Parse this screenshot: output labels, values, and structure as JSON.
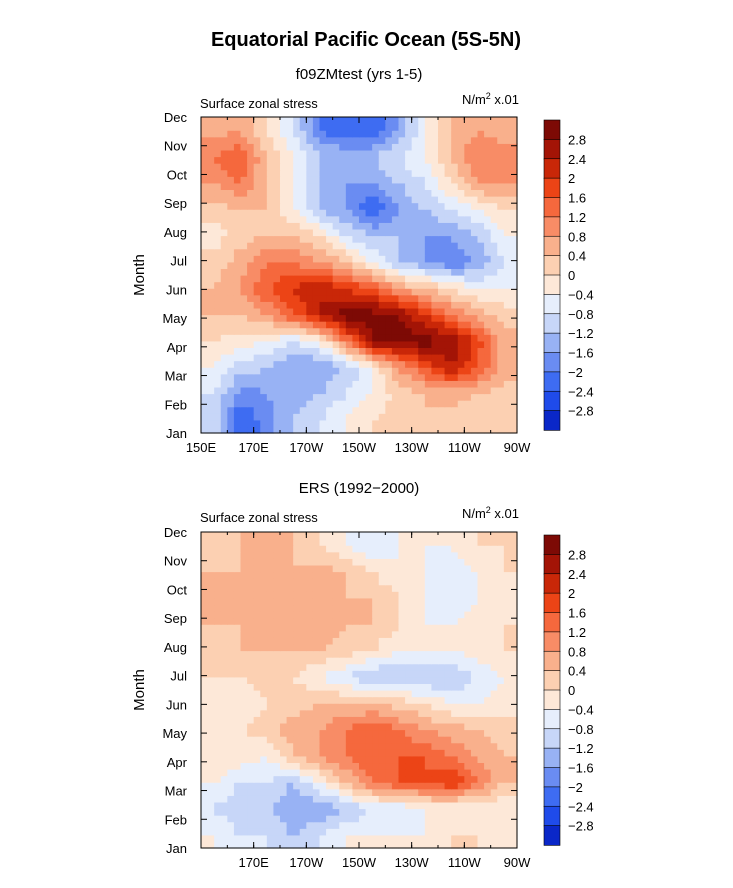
{
  "main_title": "Equatorial Pacific Ocean (5S-5N)",
  "colors": {
    "levels": [
      "#08088c",
      "#0a27c8",
      "#1f4bea",
      "#3e6cf2",
      "#6a8cf2",
      "#98b2f4",
      "#c7d6f8",
      "#e6eefc",
      "#fde8d8",
      "#fcd0b2",
      "#f9b08c",
      "#f88c66",
      "#f5683d",
      "#ec4416",
      "#c92708",
      "#a31406",
      "#7d0a05"
    ]
  },
  "chart_data": [
    {
      "type": "heatmap",
      "title": "f09ZMtest (yrs 1-5)",
      "left_label": "Surface zonal stress",
      "right_label_base": "N/m",
      "right_label_sup": "2",
      "right_label_tail": " x.01",
      "ylabel": "Month",
      "yticklabels": [
        "Jan",
        "Feb",
        "Mar",
        "Apr",
        "May",
        "Jun",
        "Jul",
        "Aug",
        "Sep",
        "Oct",
        "Nov",
        "Dec"
      ],
      "xticklabels": [
        "150E",
        "170E",
        "170W",
        "150W",
        "130W",
        "110W",
        "90W"
      ],
      "x_degE": [
        150,
        170,
        190,
        210,
        230,
        250,
        270
      ],
      "colorbar_labels": [
        "2.8",
        "2.4",
        "2",
        "1.6",
        "1.2",
        "0.8",
        "0.4",
        "0",
        "−0.4",
        "−0.8",
        "−1.2",
        "−1.6",
        "−2",
        "−2.4",
        "−2.8"
      ],
      "levels": [
        -2.8,
        -2.4,
        -2,
        -1.6,
        -1.2,
        -0.8,
        -0.4,
        0,
        0.4,
        0.8,
        1.2,
        1.6,
        2,
        2.4,
        2.8
      ],
      "values": [
        [
          -1.0,
          -2.4,
          -1.8,
          -1.2,
          -0.8,
          -0.4,
          0.0,
          0.2,
          0.4,
          0.3,
          0.2,
          0.0
        ],
        [
          -0.8,
          -1.8,
          -1.6,
          -1.4,
          -1.2,
          -0.8,
          -0.4,
          0.2,
          0.4,
          0.5,
          0.4,
          0.2
        ],
        [
          -0.4,
          -1.0,
          -1.2,
          -1.6,
          -1.6,
          -1.2,
          -0.4,
          0.8,
          1.6,
          2.4,
          1.6,
          0.6
        ],
        [
          0.0,
          -0.2,
          -0.4,
          -0.8,
          -0.4,
          1.2,
          2.8,
          3.0,
          3.0,
          2.8,
          1.8,
          0.6
        ],
        [
          0.4,
          0.4,
          0.8,
          1.6,
          2.4,
          3.0,
          3.0,
          2.8,
          2.0,
          1.2,
          0.6,
          0.2
        ],
        [
          0.4,
          0.8,
          1.6,
          2.0,
          2.4,
          2.0,
          1.6,
          0.8,
          0.4,
          0.0,
          -0.4,
          -0.4
        ],
        [
          0.2,
          0.6,
          1.2,
          1.2,
          0.8,
          0.4,
          -0.4,
          -1.2,
          -1.6,
          -2.0,
          -1.6,
          -0.8
        ],
        [
          -0.2,
          0.2,
          0.4,
          0.4,
          0.0,
          -0.8,
          -1.2,
          -1.2,
          -1.6,
          -1.6,
          -1.2,
          -0.4
        ],
        [
          0.2,
          0.4,
          0.4,
          -0.4,
          -1.2,
          -1.6,
          -2.4,
          -1.6,
          -1.2,
          -0.8,
          -0.4,
          0.0
        ],
        [
          0.8,
          1.2,
          0.4,
          -0.4,
          -1.2,
          -1.6,
          -1.6,
          -1.2,
          -0.8,
          0.0,
          0.8,
          0.8
        ],
        [
          1.2,
          1.6,
          0.4,
          -0.4,
          -1.2,
          -1.2,
          -1.2,
          -0.8,
          -0.4,
          0.4,
          1.2,
          1.0
        ],
        [
          0.6,
          0.8,
          0.0,
          -0.8,
          -2.0,
          -2.4,
          -2.4,
          -1.6,
          -0.4,
          0.4,
          0.8,
          0.6
        ]
      ]
    },
    {
      "type": "heatmap",
      "title": "ERS (1992−2000)",
      "left_label": "Surface zonal stress",
      "right_label_base": "N/m",
      "right_label_sup": "2",
      "right_label_tail": " x.01",
      "ylabel": "Month",
      "yticklabels": [
        "Jan",
        "Feb",
        "Mar",
        "Apr",
        "May",
        "Jun",
        "Jul",
        "Aug",
        "Sep",
        "Oct",
        "Nov",
        "Dec"
      ],
      "xticklabels": [
        "170E",
        "170W",
        "150W",
        "130W",
        "110W",
        "90W"
      ],
      "x_degE": [
        170,
        190,
        210,
        230,
        250,
        270
      ],
      "colorbar_labels": [
        "2.8",
        "2.4",
        "2",
        "1.6",
        "1.2",
        "0.8",
        "0.4",
        "0",
        "−0.4",
        "−0.8",
        "−1.2",
        "−1.6",
        "−2",
        "−2.4",
        "−2.8"
      ],
      "levels": [
        -2.8,
        -2.4,
        -2,
        -1.6,
        -1.2,
        -0.8,
        -0.4,
        0,
        0.4,
        0.8,
        1.2,
        1.6,
        2,
        2.4,
        2.8
      ],
      "values": [
        [
          -0.4,
          -0.8,
          -0.8,
          -1.2,
          -0.8,
          -0.4,
          -0.4,
          -0.4,
          -0.4,
          0.0,
          0.0,
          -0.4
        ],
        [
          -0.8,
          -1.2,
          -1.2,
          -1.6,
          -1.6,
          -1.2,
          -0.8,
          -0.8,
          -0.4,
          -0.4,
          -0.4,
          -0.4
        ],
        [
          -0.4,
          -0.8,
          -0.8,
          -1.2,
          -0.4,
          0.4,
          1.2,
          1.6,
          1.6,
          2.0,
          1.2,
          0.4
        ],
        [
          0.0,
          -0.2,
          -0.4,
          0.4,
          0.8,
          1.2,
          1.6,
          1.6,
          1.6,
          1.2,
          0.8,
          0.4
        ],
        [
          -0.2,
          0.0,
          0.2,
          0.6,
          0.8,
          1.2,
          1.6,
          1.2,
          0.8,
          0.6,
          0.4,
          0.2
        ],
        [
          -0.4,
          -0.4,
          0.0,
          0.2,
          0.4,
          0.4,
          0.4,
          0.2,
          0.0,
          -0.4,
          -0.4,
          -0.2
        ],
        [
          0.0,
          0.0,
          0.2,
          0.0,
          -0.4,
          -0.8,
          -1.2,
          -1.2,
          -1.2,
          -1.2,
          -0.8,
          -0.4
        ],
        [
          0.2,
          0.4,
          0.4,
          0.4,
          0.4,
          0.2,
          0.0,
          -0.4,
          -0.4,
          -0.4,
          -0.2,
          0.0
        ],
        [
          0.4,
          0.4,
          0.6,
          0.4,
          0.8,
          0.4,
          0.4,
          0.0,
          -0.4,
          -0.4,
          -0.2,
          0.0
        ],
        [
          0.4,
          0.4,
          0.4,
          0.4,
          0.4,
          0.4,
          0.4,
          0.0,
          -0.4,
          -0.8,
          -0.4,
          -0.2
        ],
        [
          0.4,
          0.4,
          0.6,
          0.4,
          0.6,
          0.4,
          0.0,
          -0.4,
          -0.4,
          -0.8,
          -0.4,
          0.0
        ],
        [
          0.2,
          0.4,
          0.4,
          0.4,
          0.0,
          -0.4,
          -0.8,
          -0.4,
          -0.4,
          -0.4,
          0.0,
          0.0
        ]
      ]
    }
  ]
}
